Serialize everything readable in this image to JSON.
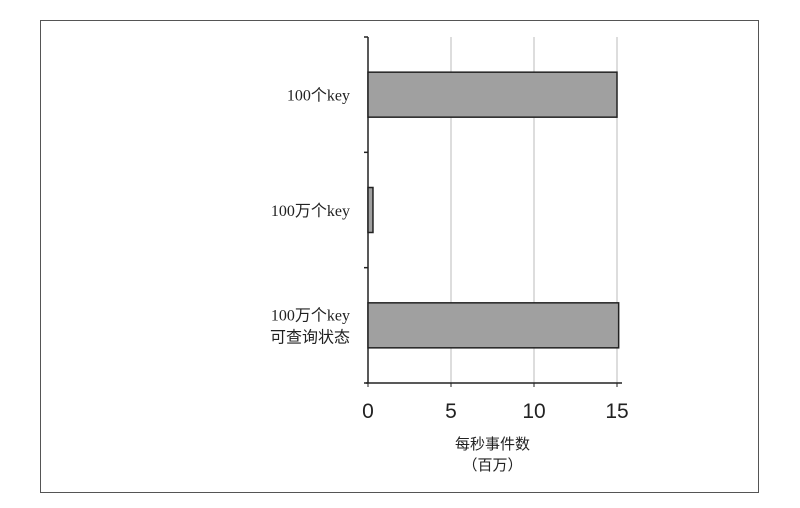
{
  "chart_data": {
    "type": "bar",
    "orientation": "horizontal",
    "categories": [
      [
        "100个key"
      ],
      [
        "100万个key"
      ],
      [
        "100万个key",
        "可查询状态"
      ]
    ],
    "values": [
      15.0,
      0.3,
      15.1
    ],
    "xlabel": [
      "每秒事件数",
      "（百万）"
    ],
    "ylabel": "",
    "xlim": [
      0,
      15
    ],
    "xticks": [
      "0",
      "5",
      "10",
      "15"
    ],
    "grid": "vertical",
    "colors": {
      "bar": "#a0a0a0",
      "bar_edge": "#222222",
      "grid": "#bbbbbb"
    }
  }
}
